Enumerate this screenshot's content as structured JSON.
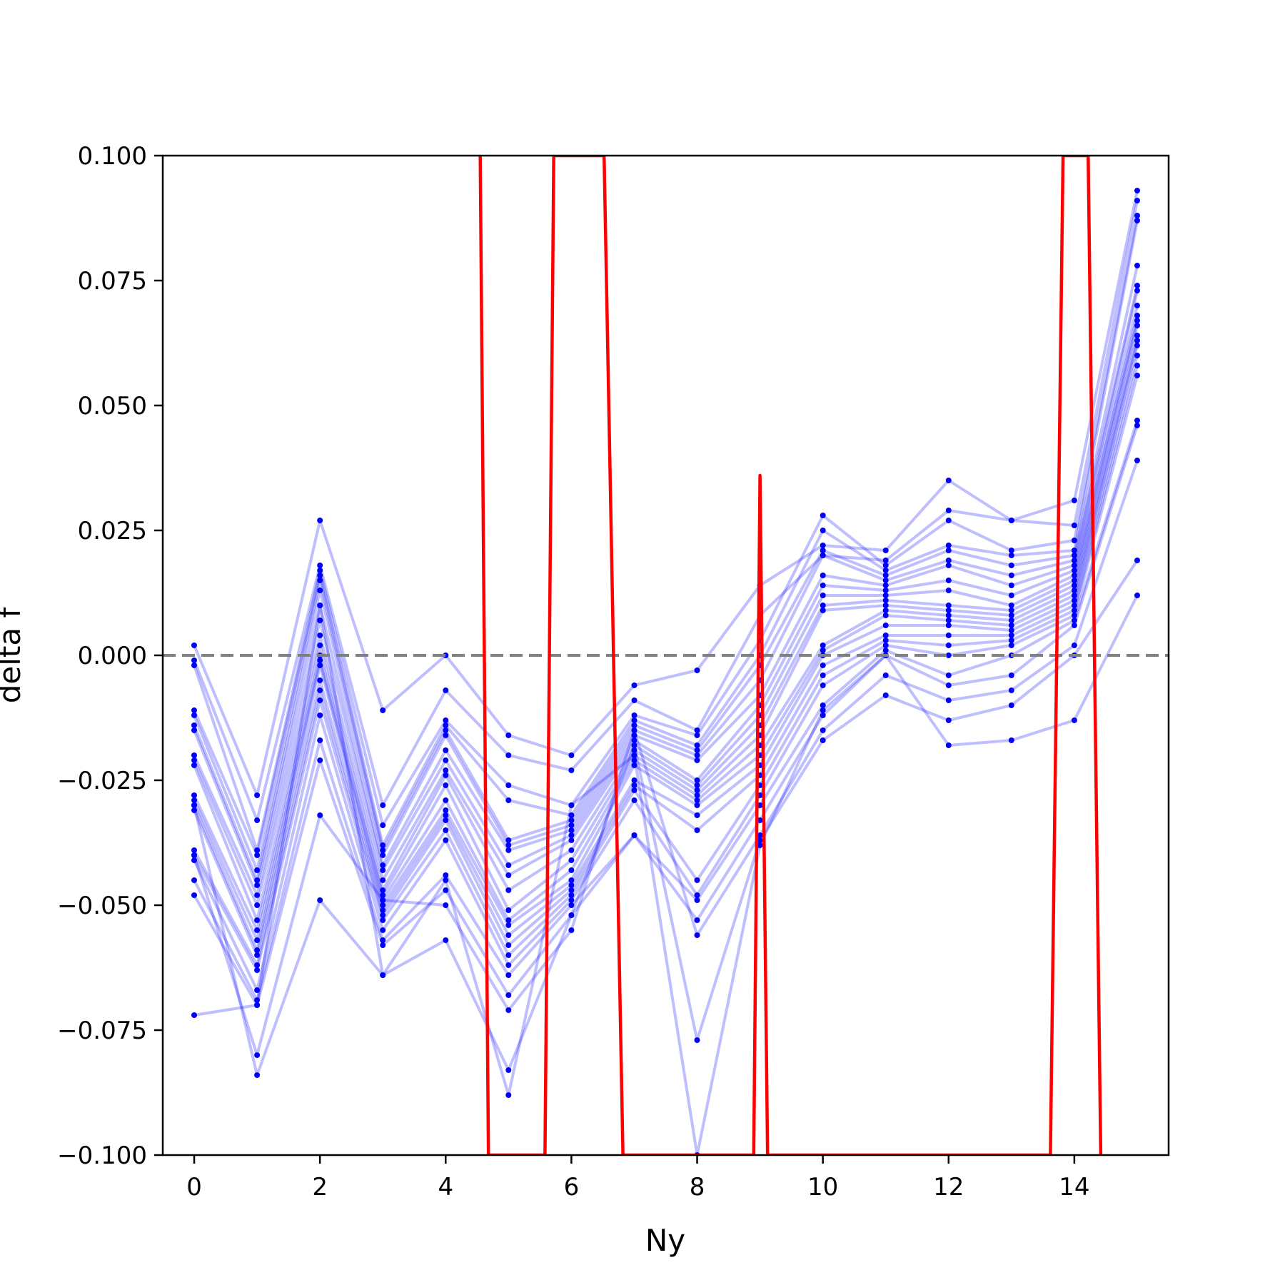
{
  "chart_data": {
    "type": "line",
    "title": "",
    "xlabel": "Ny",
    "ylabel": "delta f",
    "xlim": [
      -0.5,
      15.5
    ],
    "ylim": [
      -0.1,
      0.1
    ],
    "x_ticks": [
      0,
      2,
      4,
      6,
      8,
      10,
      12,
      14
    ],
    "x_tick_labels": [
      "0",
      "2",
      "4",
      "6",
      "8",
      "10",
      "12",
      "14"
    ],
    "y_ticks": [
      -0.1,
      -0.075,
      -0.05,
      -0.025,
      0.0,
      0.025,
      0.05,
      0.075,
      0.1
    ],
    "y_tick_labels": [
      "−0.100",
      "−0.075",
      "−0.050",
      "−0.025",
      "0.000",
      "0.025",
      "0.050",
      "0.075",
      "0.100"
    ],
    "grid": false,
    "legend": "none",
    "reference_line": {
      "y": 0.0,
      "style": "dashed",
      "color": "#808080"
    },
    "colors": {
      "series": "#0000ff",
      "highlight": "#ff0000"
    },
    "x": [
      0,
      1,
      2,
      3,
      4,
      5,
      6,
      7,
      8,
      9,
      10,
      11,
      12,
      13,
      14,
      15
    ],
    "series": [
      {
        "values": [
          0.002,
          -0.028,
          0.027,
          -0.011,
          0.0,
          -0.016,
          -0.02,
          -0.006,
          -0.003,
          0.014,
          0.022,
          0.021,
          0.035,
          0.027,
          0.031,
          0.093
        ]
      },
      {
        "values": [
          -0.001,
          -0.033,
          0.018,
          -0.03,
          -0.007,
          -0.02,
          -0.023,
          -0.009,
          -0.015,
          0.008,
          0.02,
          0.019,
          0.029,
          0.027,
          0.026,
          0.091
        ]
      },
      {
        "values": [
          -0.002,
          -0.039,
          0.017,
          -0.034,
          -0.013,
          -0.026,
          -0.03,
          -0.012,
          -0.016,
          0.003,
          0.028,
          0.018,
          0.027,
          0.021,
          0.023,
          0.088
        ]
      },
      {
        "values": [
          -0.011,
          -0.04,
          0.016,
          -0.038,
          -0.014,
          -0.029,
          -0.032,
          -0.013,
          -0.018,
          0.0,
          0.025,
          0.017,
          0.022,
          0.02,
          0.021,
          0.087
        ]
      },
      {
        "values": [
          -0.012,
          -0.043,
          0.015,
          -0.039,
          -0.015,
          -0.037,
          -0.033,
          -0.014,
          -0.019,
          -0.002,
          0.021,
          0.016,
          0.021,
          0.018,
          0.02,
          0.078
        ]
      },
      {
        "values": [
          -0.014,
          -0.045,
          0.013,
          -0.04,
          -0.016,
          -0.038,
          -0.034,
          -0.015,
          -0.02,
          -0.005,
          0.02,
          0.015,
          0.019,
          0.016,
          0.019,
          0.074
        ]
      },
      {
        "values": [
          -0.015,
          -0.046,
          0.01,
          -0.042,
          -0.019,
          -0.039,
          -0.035,
          -0.016,
          -0.021,
          -0.008,
          0.016,
          0.014,
          0.018,
          0.014,
          0.018,
          0.073
        ]
      },
      {
        "values": [
          -0.02,
          -0.048,
          0.007,
          -0.043,
          -0.021,
          -0.042,
          -0.036,
          -0.017,
          -0.025,
          -0.01,
          0.014,
          0.013,
          0.015,
          0.012,
          0.017,
          0.07
        ]
      },
      {
        "values": [
          -0.021,
          -0.05,
          0.004,
          -0.045,
          -0.023,
          -0.044,
          -0.037,
          -0.018,
          -0.026,
          -0.012,
          0.012,
          0.012,
          0.013,
          0.01,
          0.016,
          0.068
        ]
      },
      {
        "values": [
          -0.022,
          -0.053,
          0.002,
          -0.047,
          -0.024,
          -0.047,
          -0.039,
          -0.019,
          -0.027,
          -0.014,
          0.01,
          0.011,
          0.01,
          0.009,
          0.015,
          0.067
        ]
      },
      {
        "values": [
          -0.028,
          -0.055,
          0.0,
          -0.048,
          -0.026,
          -0.051,
          -0.041,
          -0.02,
          -0.028,
          -0.016,
          0.009,
          0.01,
          0.009,
          0.008,
          0.014,
          0.066
        ]
      },
      {
        "values": [
          -0.029,
          -0.057,
          -0.001,
          -0.049,
          -0.029,
          -0.053,
          -0.043,
          -0.021,
          -0.029,
          -0.018,
          0.002,
          0.009,
          0.008,
          0.007,
          0.013,
          0.064
        ]
      },
      {
        "values": [
          -0.03,
          -0.059,
          -0.002,
          -0.05,
          -0.031,
          -0.054,
          -0.045,
          -0.022,
          -0.03,
          -0.02,
          0.001,
          0.008,
          0.007,
          0.006,
          0.012,
          0.063
        ]
      },
      {
        "values": [
          -0.031,
          -0.06,
          -0.005,
          -0.051,
          -0.032,
          -0.056,
          -0.046,
          -0.025,
          -0.032,
          -0.022,
          0.0,
          0.006,
          0.006,
          0.005,
          0.011,
          0.062
        ]
      },
      {
        "values": [
          -0.039,
          -0.062,
          -0.007,
          -0.052,
          -0.033,
          -0.058,
          -0.047,
          -0.026,
          -0.035,
          -0.024,
          -0.002,
          0.004,
          0.004,
          0.004,
          0.01,
          0.06
        ]
      },
      {
        "values": [
          -0.04,
          -0.063,
          -0.009,
          -0.053,
          -0.035,
          -0.06,
          -0.048,
          -0.027,
          -0.045,
          -0.026,
          -0.004,
          0.003,
          0.002,
          0.003,
          0.009,
          0.058
        ]
      },
      {
        "values": [
          -0.041,
          -0.067,
          -0.012,
          -0.055,
          -0.037,
          -0.062,
          -0.049,
          -0.029,
          -0.048,
          -0.028,
          -0.006,
          0.002,
          0.0,
          0.002,
          0.008,
          0.056
        ]
      },
      {
        "values": [
          -0.045,
          -0.069,
          -0.017,
          -0.057,
          -0.044,
          -0.064,
          -0.05,
          -0.036,
          -0.049,
          -0.03,
          -0.01,
          0.001,
          -0.004,
          0.0,
          0.007,
          0.047
        ]
      },
      {
        "values": [
          -0.048,
          -0.07,
          -0.021,
          -0.058,
          -0.047,
          -0.068,
          -0.052,
          -0.036,
          -0.053,
          -0.033,
          -0.012,
          0.0,
          -0.006,
          -0.004,
          0.006,
          0.046
        ]
      },
      {
        "values": [
          -0.04,
          -0.08,
          -0.032,
          -0.049,
          -0.05,
          -0.071,
          -0.055,
          -0.015,
          -0.056,
          -0.036,
          -0.015,
          -0.004,
          -0.009,
          -0.007,
          0.002,
          0.039
        ]
      },
      {
        "values": [
          -0.03,
          -0.084,
          -0.049,
          -0.064,
          -0.057,
          -0.083,
          -0.052,
          -0.018,
          -0.077,
          -0.037,
          -0.017,
          -0.008,
          -0.013,
          -0.01,
          0.0,
          0.019
        ]
      },
      {
        "values": [
          -0.072,
          -0.07,
          0.01,
          -0.064,
          -0.045,
          -0.088,
          -0.03,
          -0.02,
          -0.1,
          -0.038,
          -0.011,
          0.0,
          -0.018,
          -0.017,
          -0.013,
          0.012
        ]
      }
    ],
    "highlight_series": {
      "name": "",
      "color": "#ff0000",
      "points": [
        [
          4.55,
          0.1
        ],
        [
          4.68,
          -0.1
        ],
        [
          5.58,
          -0.1
        ],
        [
          5.72,
          0.1
        ],
        [
          6.52,
          0.1
        ],
        [
          6.82,
          -0.1
        ],
        [
          8.9,
          -0.1
        ],
        [
          9.0,
          0.036
        ],
        [
          9.12,
          -0.1
        ],
        [
          13.62,
          -0.1
        ],
        [
          13.82,
          0.1
        ],
        [
          14.22,
          0.1
        ],
        [
          14.42,
          -0.1
        ]
      ]
    }
  }
}
